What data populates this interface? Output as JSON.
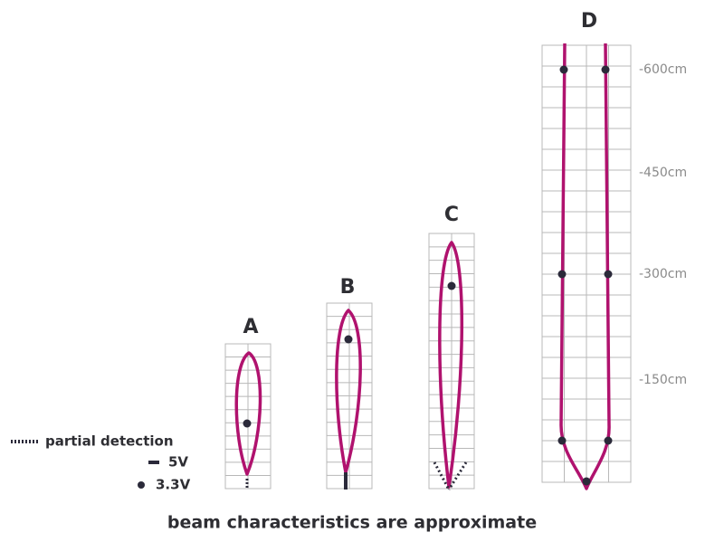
{
  "beams": [
    {
      "label": "A"
    },
    {
      "label": "B"
    },
    {
      "label": "C"
    },
    {
      "label": "D"
    }
  ],
  "scale": [
    "-600cm",
    "-450cm",
    "-300cm",
    "-150cm"
  ],
  "legend": [
    "partial detection",
    "5V",
    "3.3V"
  ],
  "footer": "beam characteristics are approximate"
}
